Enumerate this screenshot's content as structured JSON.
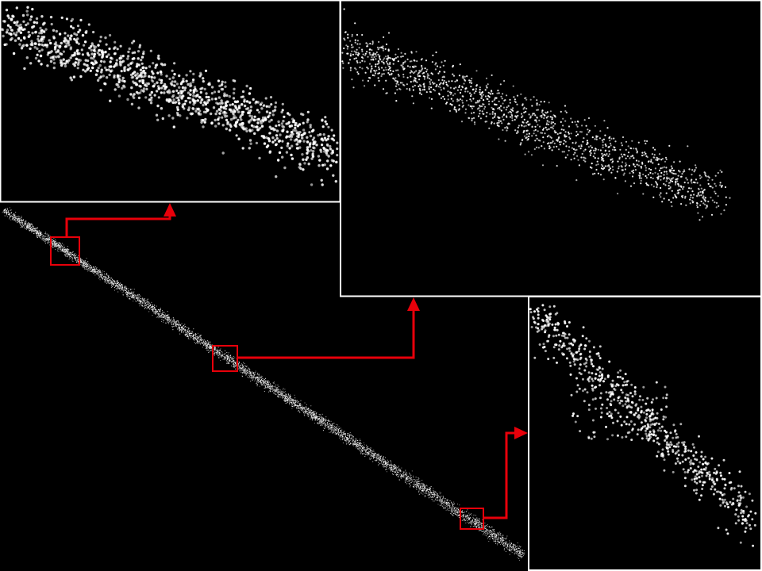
{
  "figure": {
    "background_color": "#000000",
    "point_color": "#ffffff",
    "panel_border_color": "#ffffff",
    "highlight_color": "#e8000a",
    "zoom_regions": [
      {
        "name": "zoom-region-upper",
        "target": "inset-top-left"
      },
      {
        "name": "zoom-region-middle",
        "target": "inset-top-right"
      },
      {
        "name": "zoom-region-lower",
        "target": "inset-bottom-right"
      }
    ]
  }
}
